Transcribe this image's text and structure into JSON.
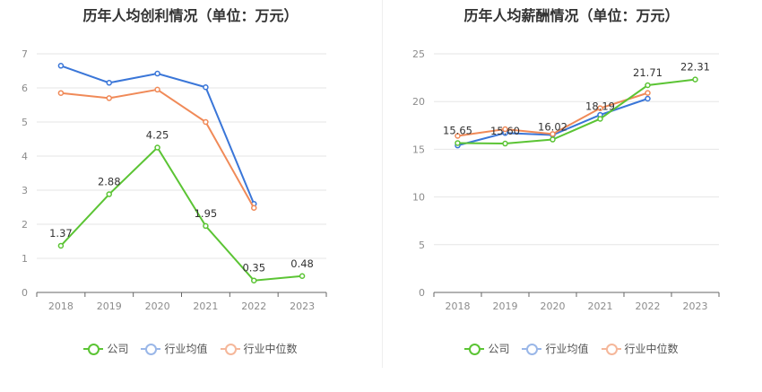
{
  "colors": {
    "company": "#5bc434",
    "industry_avg": "#3a76d8",
    "industry_median": "#f08a58",
    "legend_avg": "#9ab7e8",
    "legend_median": "#f5b79a"
  },
  "legend": {
    "company": "公司",
    "industry_avg": "行业均值",
    "industry_median": "行业中位数"
  },
  "chart_data": [
    {
      "type": "line",
      "title": "历年人均创利情况（单位：万元）",
      "categories": [
        "2018",
        "2019",
        "2020",
        "2021",
        "2022",
        "2023"
      ],
      "ylim": [
        0,
        7
      ],
      "yticks": [
        "0",
        "1",
        "2",
        "3",
        "4",
        "5",
        "6",
        "7"
      ],
      "grid": true,
      "legend_position": "bottom",
      "series": [
        {
          "name": "公司",
          "values": [
            1.37,
            2.88,
            4.25,
            1.95,
            0.35,
            0.48
          ],
          "labels": [
            "1.37",
            "2.88",
            "4.25",
            "1.95",
            "0.35",
            "0.48"
          ]
        },
        {
          "name": "行业均值",
          "values": [
            6.65,
            6.15,
            6.42,
            6.02,
            2.6,
            null
          ]
        },
        {
          "name": "行业中位数",
          "values": [
            5.85,
            5.7,
            5.95,
            5.0,
            2.48,
            null
          ]
        }
      ]
    },
    {
      "type": "line",
      "title": "历年人均薪酬情况（单位：万元）",
      "categories": [
        "2018",
        "2019",
        "2020",
        "2021",
        "2022",
        "2023"
      ],
      "ylim": [
        0,
        25
      ],
      "yticks": [
        "0",
        "5",
        "10",
        "15",
        "20",
        "25"
      ],
      "grid": true,
      "legend_position": "bottom",
      "series": [
        {
          "name": "公司",
          "values": [
            15.65,
            15.6,
            16.02,
            18.19,
            21.71,
            22.31
          ],
          "labels": [
            "15.65",
            "15.60",
            "16.02",
            "18.19",
            "21.71",
            "22.31"
          ]
        },
        {
          "name": "行业均值",
          "values": [
            15.4,
            16.7,
            16.5,
            18.6,
            20.3,
            null
          ]
        },
        {
          "name": "行业中位数",
          "values": [
            16.4,
            17.1,
            16.6,
            19.3,
            20.9,
            null
          ]
        }
      ]
    }
  ]
}
